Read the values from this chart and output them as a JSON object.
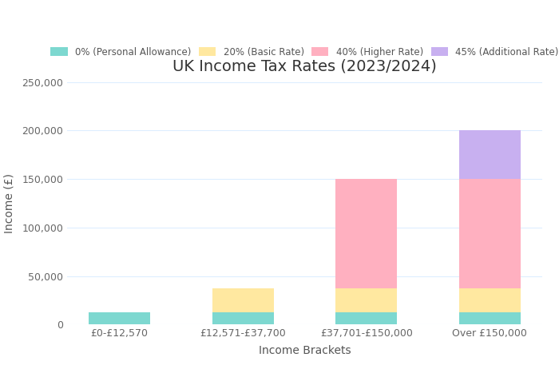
{
  "title": "UK Income Tax Rates (2023/2024)",
  "xlabel": "Income Brackets",
  "ylabel": "Income (£)",
  "categories": [
    "£0-£12,570",
    "£12,571-£37,700",
    "£37,701-£150,000",
    "Over £150,000"
  ],
  "segments": [
    {
      "label": "0% (Personal Allowance)",
      "color": "#7DD8D0",
      "values": [
        12570,
        12570,
        12570,
        12570
      ]
    },
    {
      "label": "20% (Basic Rate)",
      "color": "#FFE8A0",
      "values": [
        0,
        25130,
        25130,
        25130
      ]
    },
    {
      "label": "40% (Higher Rate)",
      "color": "#FFB0C0",
      "values": [
        0,
        0,
        112300,
        112300
      ]
    },
    {
      "label": "45% (Additional Rate)",
      "color": "#C8B0F0",
      "values": [
        0,
        0,
        0,
        50000
      ]
    }
  ],
  "ylim": [
    0,
    250000
  ],
  "yticks": [
    0,
    50000,
    100000,
    150000,
    200000,
    250000
  ],
  "ytick_labels": [
    "0",
    "50,000",
    "100,000",
    "150,000",
    "200,000",
    "250,000"
  ],
  "background_color": "#FFFFFF",
  "grid_color": "#DDEEFF",
  "title_fontsize": 14,
  "axis_label_fontsize": 10,
  "tick_fontsize": 9,
  "legend_fontsize": 8.5,
  "bar_width": 0.5
}
